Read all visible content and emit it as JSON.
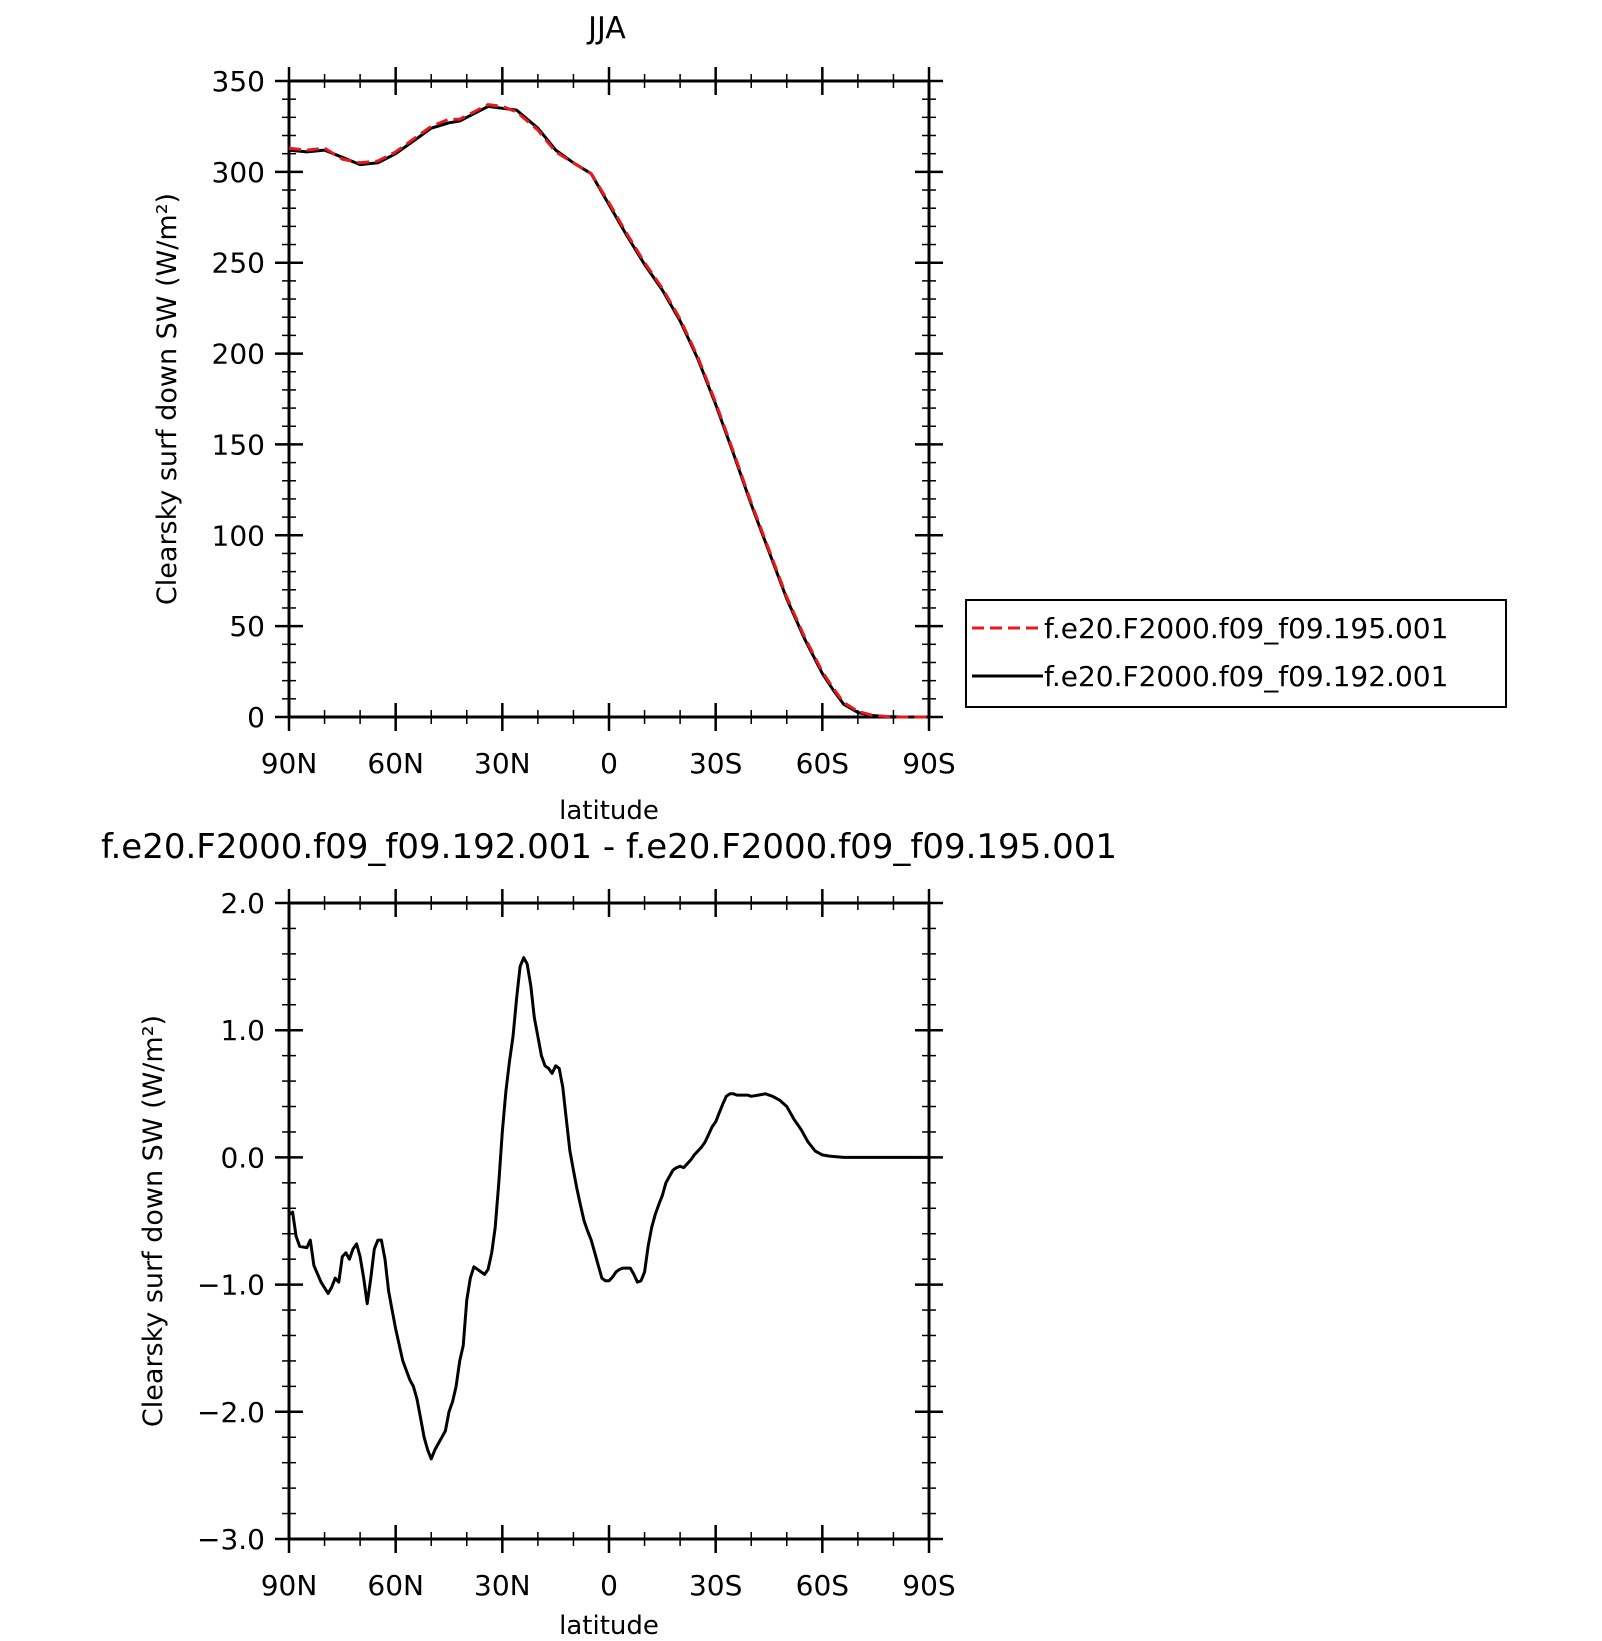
{
  "chart_data": [
    {
      "type": "line",
      "title": "JJA",
      "xlabel": "latitude",
      "ylabel": "Clearsky surf down SW (W/m²)",
      "xlim": [
        90,
        -90
      ],
      "ylim": [
        0,
        350
      ],
      "x_ticks": [
        90,
        60,
        30,
        0,
        -30,
        -60,
        -90
      ],
      "x_tick_labels": [
        "90N",
        "60N",
        "30N",
        "0",
        "30S",
        "60S",
        "90S"
      ],
      "y_ticks": [
        0,
        50,
        100,
        150,
        200,
        250,
        300,
        350
      ],
      "y_tick_labels": [
        "0",
        "50",
        "100",
        "150",
        "200",
        "250",
        "300",
        "350"
      ],
      "grid": false,
      "legend_position": "right",
      "series": [
        {
          "name": "f.e20.F2000.f09_f09.195.001",
          "color": "#e8191c",
          "dash": "dashed",
          "x": [
            90,
            85,
            80,
            75,
            70,
            65,
            60,
            55,
            50,
            45,
            42,
            38,
            34,
            30,
            26,
            20,
            15,
            10,
            5,
            0,
            -5,
            -10,
            -15,
            -20,
            -25,
            -30,
            -35,
            -40,
            -45,
            -50,
            -55,
            -60,
            -63,
            -66,
            -70,
            -74,
            -78,
            -82,
            -86,
            -90
          ],
          "y": [
            313,
            312,
            313,
            307,
            305,
            306,
            311,
            318,
            325,
            329,
            329,
            333,
            337,
            336,
            333,
            323,
            311,
            305,
            299,
            283,
            266,
            250,
            236,
            219,
            198,
            173,
            146,
            118,
            92,
            66,
            44,
            25,
            16,
            8,
            3,
            1,
            0.3,
            0,
            0,
            0
          ]
        },
        {
          "name": "f.e20.F2000.f09_f09.192.001",
          "color": "#000000",
          "dash": "solid",
          "x": [
            90,
            85,
            80,
            75,
            70,
            65,
            60,
            55,
            50,
            45,
            42,
            38,
            34,
            30,
            26,
            20,
            15,
            10,
            5,
            0,
            -5,
            -10,
            -15,
            -20,
            -25,
            -30,
            -35,
            -40,
            -45,
            -50,
            -55,
            -60,
            -63,
            -66,
            -70,
            -74,
            -78,
            -82,
            -86,
            -90
          ],
          "y": [
            312,
            311,
            312,
            308,
            304,
            305,
            310,
            317,
            324,
            327,
            328,
            332,
            336,
            335,
            334,
            324,
            312,
            305,
            299,
            282,
            265,
            249,
            235,
            218,
            197,
            172,
            145,
            117,
            91,
            65,
            43,
            24,
            15,
            7,
            2.5,
            0.8,
            0.2,
            0,
            0,
            0
          ]
        }
      ]
    },
    {
      "type": "line",
      "title": "f.e20.F2000.f09_f09.192.001 - f.e20.F2000.f09_f09.195.001",
      "xlabel": "latitude",
      "ylabel": "Clearsky surf down SW (W/m²)",
      "xlim": [
        90,
        -90
      ],
      "ylim": [
        -3.0,
        2.0
      ],
      "x_ticks": [
        90,
        60,
        30,
        0,
        -30,
        -60,
        -90
      ],
      "x_tick_labels": [
        "90N",
        "60N",
        "30N",
        "0",
        "30S",
        "60S",
        "90S"
      ],
      "y_ticks": [
        -3.0,
        -2.0,
        -1.0,
        0.0,
        1.0,
        2.0
      ],
      "y_tick_labels": [
        "−3.0",
        "−2.0",
        "−1.0",
        "0.0",
        "1.0",
        "2.0"
      ],
      "grid": false,
      "series": [
        {
          "color": "#000000",
          "dash": "solid",
          "x": [
            90,
            89,
            88,
            87,
            85,
            84,
            83,
            81,
            79,
            78,
            77,
            76,
            75,
            74,
            73,
            72,
            71,
            70,
            69,
            68,
            67,
            66,
            65,
            64,
            63,
            62,
            61,
            60,
            58,
            56,
            55,
            54,
            53,
            52,
            51,
            50,
            49,
            48,
            47,
            46,
            45,
            44,
            43,
            42,
            41,
            40,
            39,
            38,
            37,
            36,
            35,
            34,
            33,
            32,
            31,
            30,
            29,
            28,
            27,
            26,
            25,
            24,
            23,
            22,
            21,
            20,
            19,
            18,
            17,
            16,
            15,
            14,
            13,
            12,
            11,
            10,
            9,
            8,
            7,
            6,
            5,
            4,
            3,
            2,
            1,
            0,
            -1,
            -2,
            -3,
            -4,
            -5,
            -6,
            -7,
            -8,
            -9,
            -10,
            -11,
            -12,
            -13,
            -14,
            -15,
            -16,
            -17,
            -18,
            -19,
            -20,
            -21,
            -22,
            -23,
            -24,
            -25,
            -26,
            -27,
            -28,
            -29,
            -30,
            -31,
            -32,
            -33,
            -34,
            -35,
            -36,
            -37,
            -38,
            -39,
            -40,
            -42,
            -44,
            -46,
            -48,
            -50,
            -52,
            -54,
            -56,
            -58,
            -60,
            -62,
            -64,
            -66,
            -68,
            -70,
            -72,
            -75,
            -80,
            -85,
            -90
          ],
          "y": [
            -0.45,
            -0.43,
            -0.62,
            -0.7,
            -0.71,
            -0.65,
            -0.85,
            -0.98,
            -1.07,
            -1.02,
            -0.95,
            -0.98,
            -0.78,
            -0.75,
            -0.8,
            -0.72,
            -0.68,
            -0.78,
            -0.95,
            -1.15,
            -0.95,
            -0.72,
            -0.65,
            -0.65,
            -0.8,
            -1.05,
            -1.2,
            -1.35,
            -1.6,
            -1.75,
            -1.8,
            -1.9,
            -2.05,
            -2.2,
            -2.3,
            -2.37,
            -2.3,
            -2.25,
            -2.2,
            -2.15,
            -2.0,
            -1.92,
            -1.8,
            -1.6,
            -1.48,
            -1.12,
            -0.95,
            -0.86,
            -0.88,
            -0.9,
            -0.92,
            -0.88,
            -0.75,
            -0.55,
            -0.2,
            0.2,
            0.52,
            0.75,
            0.95,
            1.25,
            1.5,
            1.57,
            1.52,
            1.35,
            1.1,
            0.95,
            0.8,
            0.72,
            0.7,
            0.66,
            0.72,
            0.7,
            0.55,
            0.3,
            0.05,
            -0.1,
            -0.25,
            -0.38,
            -0.5,
            -0.58,
            -0.65,
            -0.75,
            -0.85,
            -0.95,
            -0.97,
            -0.97,
            -0.94,
            -0.9,
            -0.88,
            -0.87,
            -0.87,
            -0.87,
            -0.92,
            -0.98,
            -0.97,
            -0.9,
            -0.7,
            -0.55,
            -0.45,
            -0.37,
            -0.3,
            -0.2,
            -0.15,
            -0.1,
            -0.08,
            -0.07,
            -0.08,
            -0.05,
            -0.02,
            0.02,
            0.05,
            0.08,
            0.12,
            0.18,
            0.24,
            0.28,
            0.35,
            0.42,
            0.48,
            0.5,
            0.5,
            0.49,
            0.49,
            0.49,
            0.49,
            0.48,
            0.49,
            0.5,
            0.48,
            0.45,
            0.4,
            0.3,
            0.22,
            0.12,
            0.05,
            0.02,
            0.01,
            0.005,
            0.0,
            0.0,
            0.0,
            0.0,
            0.0,
            0.0,
            0.0,
            0.0
          ]
        }
      ]
    }
  ]
}
